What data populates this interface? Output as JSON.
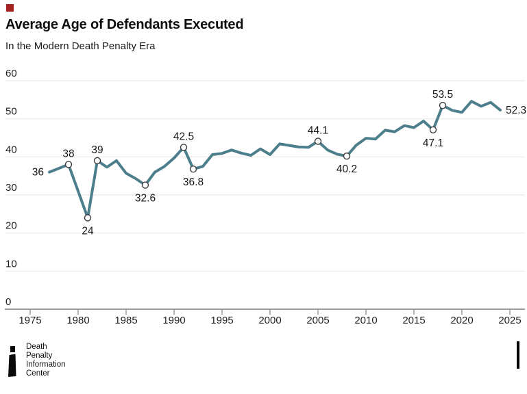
{
  "brand": {
    "accent_square_color": "#a42222"
  },
  "chart_data": {
    "type": "line",
    "title": "Average Age of Defendants Executed",
    "subtitle": "In the Modern Death Penalty Era",
    "xlabel": "",
    "ylabel": "",
    "xlim": [
      1975,
      2025
    ],
    "ylim": [
      0,
      60
    ],
    "x_ticks": [
      1975,
      1980,
      1985,
      1990,
      1995,
      2000,
      2005,
      2010,
      2015,
      2020,
      2025
    ],
    "y_ticks": [
      0,
      10,
      20,
      30,
      40,
      50,
      60
    ],
    "grid": "horizontal-light",
    "legend": "none",
    "line_color": "#4d7e8c",
    "marker_fill": "#ffffff",
    "marker_stroke": "#3d3d3d",
    "series": [
      {
        "name": "Average age of defendants executed",
        "x": [
          1977,
          1979,
          1981,
          1982,
          1983,
          1984,
          1985,
          1986,
          1987,
          1988,
          1989,
          1990,
          1991,
          1992,
          1993,
          1994,
          1995,
          1996,
          1997,
          1998,
          1999,
          2000,
          2001,
          2002,
          2003,
          2004,
          2005,
          2006,
          2007,
          2008,
          2009,
          2010,
          2011,
          2012,
          2013,
          2014,
          2015,
          2016,
          2017,
          2018,
          2019,
          2020,
          2021,
          2022,
          2023,
          2024
        ],
        "y": [
          36,
          38,
          24,
          39,
          37.3,
          39.0,
          35.7,
          34.3,
          32.6,
          36.0,
          37.5,
          39.7,
          42.5,
          36.8,
          37.5,
          40.6,
          40.9,
          41.8,
          41.0,
          40.4,
          42.1,
          40.6,
          43.4,
          43.0,
          42.6,
          42.5,
          44.1,
          41.8,
          40.7,
          40.2,
          43.1,
          44.9,
          44.7,
          47.0,
          46.6,
          48.2,
          47.7,
          49.4,
          47.1,
          53.5,
          52.2,
          51.7,
          54.6,
          53.3,
          54.3,
          52.3
        ]
      }
    ],
    "labeled_points": [
      {
        "x": 1977,
        "y": 36,
        "label": "36",
        "side": "left",
        "marker": false
      },
      {
        "x": 1979,
        "y": 38,
        "label": "38",
        "side": "above",
        "marker": true
      },
      {
        "x": 1981,
        "y": 24,
        "label": "24",
        "side": "below",
        "marker": true
      },
      {
        "x": 1982,
        "y": 39,
        "label": "39",
        "side": "above",
        "marker": true
      },
      {
        "x": 1987,
        "y": 32.6,
        "label": "32.6",
        "side": "below",
        "marker": true
      },
      {
        "x": 1991,
        "y": 42.5,
        "label": "42.5",
        "side": "above",
        "marker": true
      },
      {
        "x": 1992,
        "y": 36.8,
        "label": "36.8",
        "side": "below",
        "marker": true
      },
      {
        "x": 2005,
        "y": 44.1,
        "label": "44.1",
        "side": "above",
        "marker": true
      },
      {
        "x": 2008,
        "y": 40.2,
        "label": "40.2",
        "side": "below",
        "marker": true
      },
      {
        "x": 2017,
        "y": 47.1,
        "label": "47.1",
        "side": "below",
        "marker": true
      },
      {
        "x": 2018,
        "y": 53.5,
        "label": "53.5",
        "side": "above",
        "marker": true
      },
      {
        "x": 2024,
        "y": 52.3,
        "label": "52.3",
        "side": "right",
        "marker": false
      }
    ]
  },
  "footer": {
    "logo_lines": [
      "Death",
      "Penalty",
      "Information",
      "Center"
    ]
  }
}
